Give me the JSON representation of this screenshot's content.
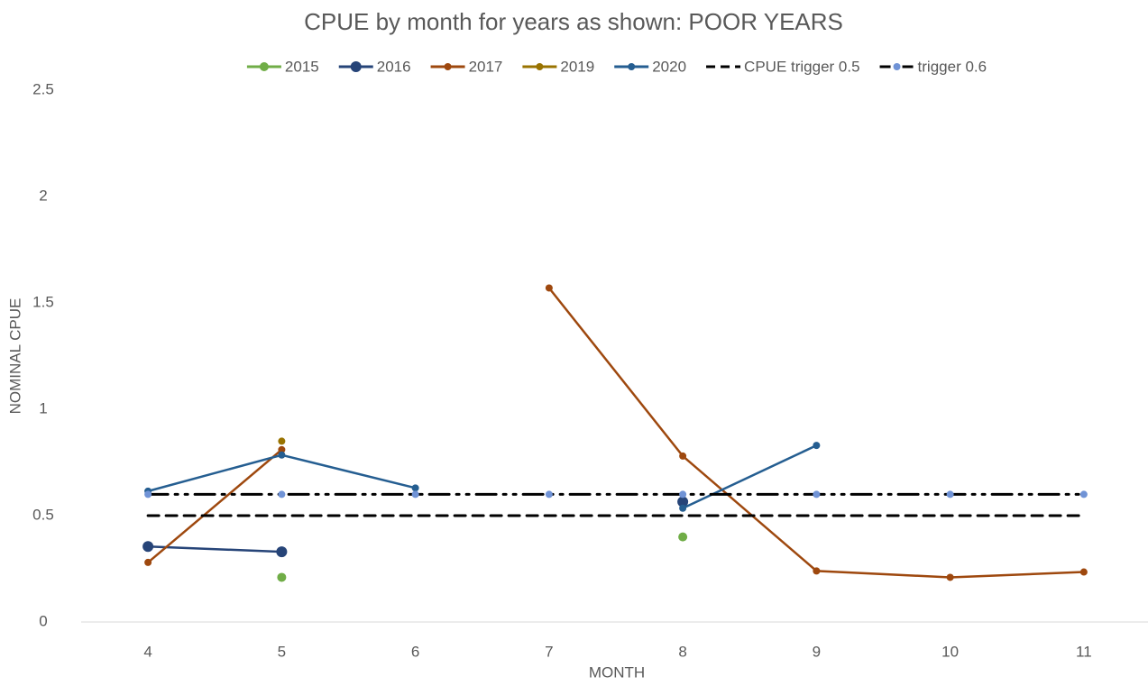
{
  "chart_data": {
    "type": "line",
    "title": "CPUE by month for years as shown: POOR YEARS",
    "x_label": "MONTH",
    "y_label": "NOMINAL CPUE",
    "categories": [
      "4",
      "5",
      "6",
      "7",
      "8",
      "9",
      "10",
      "11"
    ],
    "series": [
      {
        "name": "2015",
        "color": "#70ad47",
        "marker_size": 5,
        "line_style": "solid",
        "values": [
          null,
          0.21,
          null,
          null,
          0.4,
          null,
          null,
          null
        ]
      },
      {
        "name": "2016",
        "color": "#264478",
        "marker_size": 6,
        "line_style": "solid",
        "values": [
          0.355,
          0.33,
          null,
          null,
          0.565,
          null,
          null,
          null
        ]
      },
      {
        "name": "2017",
        "color": "#9e480e",
        "marker_size": 4,
        "line_style": "solid",
        "values": [
          0.28,
          0.81,
          null,
          1.57,
          0.78,
          0.24,
          0.21,
          0.235
        ]
      },
      {
        "name": "2019",
        "color": "#997300",
        "marker_size": 4,
        "line_style": "solid",
        "values": [
          null,
          0.85,
          null,
          null,
          null,
          null,
          null,
          null
        ]
      },
      {
        "name": "2020",
        "color": "#255e91",
        "marker_size": 4,
        "line_style": "solid",
        "values": [
          0.615,
          0.785,
          0.63,
          null,
          0.535,
          0.83,
          null,
          null
        ]
      },
      {
        "name": "CPUE trigger 0.5",
        "color": "#000000",
        "marker_size": 0,
        "line_style": "dashed",
        "values": [
          0.5,
          0.5,
          0.5,
          0.5,
          0.5,
          0.5,
          0.5,
          0.5
        ]
      },
      {
        "name": "trigger 0.6",
        "color": "#000000",
        "marker_color": "#7093d6",
        "marker_size": 4,
        "line_style": "dash-dot-dot",
        "values": [
          0.6,
          0.6,
          0.6,
          0.6,
          0.6,
          0.6,
          0.6,
          0.6
        ]
      }
    ],
    "ylim": [
      0,
      2.5
    ],
    "yticks": [
      0,
      0.5,
      1,
      1.5,
      2,
      2.5
    ],
    "grid": false,
    "legend": "top"
  }
}
